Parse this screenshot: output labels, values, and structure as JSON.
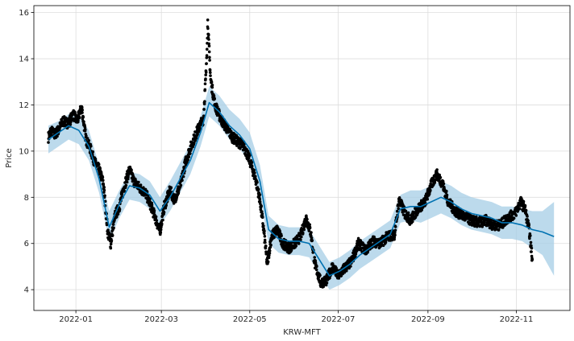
{
  "chart_data": {
    "type": "line",
    "title": "",
    "xlabel": "KRW-MFT",
    "ylabel": "Price",
    "x_ticks": [
      "2022-01",
      "2022-03",
      "2022-05",
      "2022-07",
      "2022-09",
      "2022-11"
    ],
    "y_ticks": [
      4,
      6,
      8,
      10,
      12,
      14,
      16
    ],
    "xlim": [
      "2021-12-03",
      "2022-12-08"
    ],
    "ylim": [
      3.1,
      16.3
    ],
    "grid": true,
    "legend": "none",
    "colors": {
      "actual": "#000000",
      "forecast": "#0072b2",
      "interval": "#a6cde6",
      "grid": "#dddddd",
      "frame": "#000000"
    },
    "series": [
      {
        "role": "forecast",
        "points": [
          [
            "2021-12-13",
            10.5
          ],
          [
            "2021-12-20",
            10.8
          ],
          [
            "2021-12-27",
            11.1
          ],
          [
            "2022-01-03",
            10.9
          ],
          [
            "2022-01-10",
            10.2
          ],
          [
            "2022-01-17",
            8.8
          ],
          [
            "2022-01-24",
            6.7
          ],
          [
            "2022-01-31",
            7.7
          ],
          [
            "2022-02-07",
            8.5
          ],
          [
            "2022-02-14",
            8.4
          ],
          [
            "2022-02-21",
            8.1
          ],
          [
            "2022-02-28",
            7.4
          ],
          [
            "2022-03-07",
            8.0
          ],
          [
            "2022-03-14",
            8.8
          ],
          [
            "2022-03-21",
            9.6
          ],
          [
            "2022-03-28",
            10.8
          ],
          [
            "2022-04-03",
            12.1
          ],
          [
            "2022-04-10",
            11.7
          ],
          [
            "2022-04-17",
            11.1
          ],
          [
            "2022-04-24",
            10.7
          ],
          [
            "2022-05-01",
            10.1
          ],
          [
            "2022-05-08",
            8.7
          ],
          [
            "2022-05-14",
            6.6
          ],
          [
            "2022-05-21",
            6.2
          ],
          [
            "2022-05-28",
            6.1
          ],
          [
            "2022-06-04",
            6.1
          ],
          [
            "2022-06-11",
            6.0
          ],
          [
            "2022-06-18",
            5.3
          ],
          [
            "2022-06-25",
            4.6
          ],
          [
            "2022-07-02",
            4.8
          ],
          [
            "2022-07-09",
            5.1
          ],
          [
            "2022-07-16",
            5.5
          ],
          [
            "2022-07-23",
            5.8
          ],
          [
            "2022-07-30",
            6.1
          ],
          [
            "2022-08-06",
            6.4
          ],
          [
            "2022-08-13",
            7.5
          ],
          [
            "2022-08-20",
            7.6
          ],
          [
            "2022-08-27",
            7.6
          ],
          [
            "2022-09-03",
            7.8
          ],
          [
            "2022-09-10",
            8.0
          ],
          [
            "2022-09-17",
            7.8
          ],
          [
            "2022-09-24",
            7.5
          ],
          [
            "2022-10-01",
            7.3
          ],
          [
            "2022-10-08",
            7.2
          ],
          [
            "2022-10-15",
            7.1
          ],
          [
            "2022-10-22",
            6.9
          ],
          [
            "2022-10-29",
            6.9
          ],
          [
            "2022-11-05",
            6.8
          ],
          [
            "2022-11-12",
            6.6
          ],
          [
            "2022-11-19",
            6.5
          ],
          [
            "2022-11-27",
            6.3
          ]
        ]
      },
      {
        "role": "interval-upper",
        "points": [
          [
            "2021-12-13",
            11.1
          ],
          [
            "2021-12-20",
            11.3
          ],
          [
            "2021-12-27",
            11.6
          ],
          [
            "2022-01-03",
            11.5
          ],
          [
            "2022-01-10",
            10.9
          ],
          [
            "2022-01-17",
            9.4
          ],
          [
            "2022-01-24",
            7.4
          ],
          [
            "2022-01-31",
            8.3
          ],
          [
            "2022-02-07",
            9.1
          ],
          [
            "2022-02-14",
            9.0
          ],
          [
            "2022-02-21",
            8.7
          ],
          [
            "2022-02-28",
            8.0
          ],
          [
            "2022-03-07",
            8.7
          ],
          [
            "2022-03-14",
            9.5
          ],
          [
            "2022-03-21",
            10.3
          ],
          [
            "2022-03-28",
            11.5
          ],
          [
            "2022-04-03",
            12.8
          ],
          [
            "2022-04-10",
            12.4
          ],
          [
            "2022-04-17",
            11.8
          ],
          [
            "2022-04-24",
            11.4
          ],
          [
            "2022-05-01",
            10.8
          ],
          [
            "2022-05-08",
            9.4
          ],
          [
            "2022-05-14",
            7.2
          ],
          [
            "2022-05-21",
            6.8
          ],
          [
            "2022-05-28",
            6.7
          ],
          [
            "2022-06-04",
            6.7
          ],
          [
            "2022-06-11",
            6.6
          ],
          [
            "2022-06-18",
            5.9
          ],
          [
            "2022-06-25",
            5.2
          ],
          [
            "2022-07-02",
            5.4
          ],
          [
            "2022-07-09",
            5.7
          ],
          [
            "2022-07-16",
            6.1
          ],
          [
            "2022-07-23",
            6.4
          ],
          [
            "2022-07-30",
            6.7
          ],
          [
            "2022-08-06",
            7.0
          ],
          [
            "2022-08-13",
            8.1
          ],
          [
            "2022-08-20",
            8.3
          ],
          [
            "2022-08-27",
            8.3
          ],
          [
            "2022-09-03",
            8.5
          ],
          [
            "2022-09-10",
            8.7
          ],
          [
            "2022-09-17",
            8.5
          ],
          [
            "2022-09-24",
            8.2
          ],
          [
            "2022-10-01",
            8.0
          ],
          [
            "2022-10-08",
            7.9
          ],
          [
            "2022-10-15",
            7.8
          ],
          [
            "2022-10-22",
            7.6
          ],
          [
            "2022-10-29",
            7.6
          ],
          [
            "2022-11-05",
            7.5
          ],
          [
            "2022-11-12",
            7.4
          ],
          [
            "2022-11-19",
            7.4
          ],
          [
            "2022-11-27",
            7.8
          ]
        ]
      },
      {
        "role": "interval-lower",
        "points": [
          [
            "2021-12-13",
            9.9
          ],
          [
            "2021-12-20",
            10.2
          ],
          [
            "2021-12-27",
            10.5
          ],
          [
            "2022-01-03",
            10.3
          ],
          [
            "2022-01-10",
            9.6
          ],
          [
            "2022-01-17",
            8.2
          ],
          [
            "2022-01-24",
            6.1
          ],
          [
            "2022-01-31",
            7.1
          ],
          [
            "2022-02-07",
            7.9
          ],
          [
            "2022-02-14",
            7.8
          ],
          [
            "2022-02-21",
            7.5
          ],
          [
            "2022-02-28",
            6.8
          ],
          [
            "2022-03-07",
            7.4
          ],
          [
            "2022-03-14",
            8.2
          ],
          [
            "2022-03-21",
            9.0
          ],
          [
            "2022-03-28",
            10.2
          ],
          [
            "2022-04-03",
            11.5
          ],
          [
            "2022-04-10",
            11.1
          ],
          [
            "2022-04-17",
            10.5
          ],
          [
            "2022-04-24",
            10.1
          ],
          [
            "2022-05-01",
            9.5
          ],
          [
            "2022-05-08",
            8.1
          ],
          [
            "2022-05-14",
            6.0
          ],
          [
            "2022-05-21",
            5.6
          ],
          [
            "2022-05-28",
            5.5
          ],
          [
            "2022-06-04",
            5.5
          ],
          [
            "2022-06-11",
            5.4
          ],
          [
            "2022-06-18",
            4.7
          ],
          [
            "2022-06-25",
            4.0
          ],
          [
            "2022-07-02",
            4.2
          ],
          [
            "2022-07-09",
            4.5
          ],
          [
            "2022-07-16",
            4.9
          ],
          [
            "2022-07-23",
            5.2
          ],
          [
            "2022-07-30",
            5.5
          ],
          [
            "2022-08-06",
            5.8
          ],
          [
            "2022-08-13",
            6.9
          ],
          [
            "2022-08-20",
            7.0
          ],
          [
            "2022-08-27",
            6.9
          ],
          [
            "2022-09-03",
            7.1
          ],
          [
            "2022-09-10",
            7.3
          ],
          [
            "2022-09-17",
            7.1
          ],
          [
            "2022-09-24",
            6.8
          ],
          [
            "2022-10-01",
            6.6
          ],
          [
            "2022-10-08",
            6.5
          ],
          [
            "2022-10-15",
            6.4
          ],
          [
            "2022-10-22",
            6.2
          ],
          [
            "2022-10-29",
            6.2
          ],
          [
            "2022-11-05",
            6.1
          ],
          [
            "2022-11-12",
            5.8
          ],
          [
            "2022-11-19",
            5.5
          ],
          [
            "2022-11-27",
            4.6
          ]
        ]
      },
      {
        "role": "actual",
        "points": [
          [
            "2021-12-13",
            10.6
          ],
          [
            "2021-12-15",
            10.9
          ],
          [
            "2021-12-17",
            10.7
          ],
          [
            "2021-12-20",
            10.9
          ],
          [
            "2021-12-23",
            11.3
          ],
          [
            "2021-12-27",
            11.2
          ],
          [
            "2021-12-30",
            11.6
          ],
          [
            "2022-01-02",
            11.3
          ],
          [
            "2022-01-05",
            11.9
          ],
          [
            "2022-01-08",
            10.5
          ],
          [
            "2022-01-11",
            10.1
          ],
          [
            "2022-01-14",
            9.5
          ],
          [
            "2022-01-17",
            9.2
          ],
          [
            "2022-01-20",
            8.6
          ],
          [
            "2022-01-23",
            6.5
          ],
          [
            "2022-01-25",
            6.0
          ],
          [
            "2022-01-28",
            7.2
          ],
          [
            "2022-01-31",
            7.6
          ],
          [
            "2022-02-03",
            8.4
          ],
          [
            "2022-02-07",
            9.2
          ],
          [
            "2022-02-10",
            8.7
          ],
          [
            "2022-02-14",
            8.4
          ],
          [
            "2022-02-18",
            8.2
          ],
          [
            "2022-02-22",
            7.6
          ],
          [
            "2022-02-26",
            6.9
          ],
          [
            "2022-02-28",
            6.5
          ],
          [
            "2022-03-03",
            7.6
          ],
          [
            "2022-03-07",
            8.3
          ],
          [
            "2022-03-10",
            7.9
          ],
          [
            "2022-03-14",
            8.5
          ],
          [
            "2022-03-18",
            9.6
          ],
          [
            "2022-03-22",
            10.3
          ],
          [
            "2022-03-26",
            10.9
          ],
          [
            "2022-03-30",
            11.4
          ],
          [
            "2022-04-01",
            13.6
          ],
          [
            "2022-04-02",
            15.6
          ],
          [
            "2022-04-04",
            13.1
          ],
          [
            "2022-04-07",
            12.0
          ],
          [
            "2022-04-11",
            11.4
          ],
          [
            "2022-04-15",
            11.0
          ],
          [
            "2022-04-19",
            10.6
          ],
          [
            "2022-04-23",
            10.4
          ],
          [
            "2022-04-27",
            10.2
          ],
          [
            "2022-05-01",
            9.6
          ],
          [
            "2022-05-05",
            8.8
          ],
          [
            "2022-05-08",
            7.9
          ],
          [
            "2022-05-11",
            6.4
          ],
          [
            "2022-05-13",
            5.1
          ],
          [
            "2022-05-16",
            6.3
          ],
          [
            "2022-05-20",
            6.6
          ],
          [
            "2022-05-24",
            6.0
          ],
          [
            "2022-05-28",
            5.8
          ],
          [
            "2022-06-01",
            6.0
          ],
          [
            "2022-06-05",
            6.3
          ],
          [
            "2022-06-09",
            7.1
          ],
          [
            "2022-06-12",
            6.5
          ],
          [
            "2022-06-15",
            5.1
          ],
          [
            "2022-06-19",
            4.3
          ],
          [
            "2022-06-23",
            4.4
          ],
          [
            "2022-06-27",
            5.0
          ],
          [
            "2022-07-01",
            4.6
          ],
          [
            "2022-07-05",
            4.9
          ],
          [
            "2022-07-10",
            5.2
          ],
          [
            "2022-07-15",
            6.0
          ],
          [
            "2022-07-20",
            5.7
          ],
          [
            "2022-07-25",
            6.1
          ],
          [
            "2022-07-30",
            6.0
          ],
          [
            "2022-08-04",
            6.3
          ],
          [
            "2022-08-09",
            6.4
          ],
          [
            "2022-08-12",
            7.9
          ],
          [
            "2022-08-16",
            7.3
          ],
          [
            "2022-08-20",
            7.0
          ],
          [
            "2022-08-25",
            7.5
          ],
          [
            "2022-08-30",
            7.8
          ],
          [
            "2022-09-03",
            8.5
          ],
          [
            "2022-09-07",
            9.0
          ],
          [
            "2022-09-11",
            8.6
          ],
          [
            "2022-09-15",
            7.8
          ],
          [
            "2022-09-20",
            7.4
          ],
          [
            "2022-09-25",
            7.2
          ],
          [
            "2022-10-01",
            7.0
          ],
          [
            "2022-10-06",
            6.9
          ],
          [
            "2022-10-11",
            7.0
          ],
          [
            "2022-10-16",
            6.8
          ],
          [
            "2022-10-21",
            6.8
          ],
          [
            "2022-10-26",
            7.1
          ],
          [
            "2022-10-31",
            7.3
          ],
          [
            "2022-11-04",
            7.8
          ],
          [
            "2022-11-07",
            7.5
          ],
          [
            "2022-11-10",
            6.5
          ],
          [
            "2022-11-12",
            5.3
          ]
        ]
      }
    ]
  }
}
